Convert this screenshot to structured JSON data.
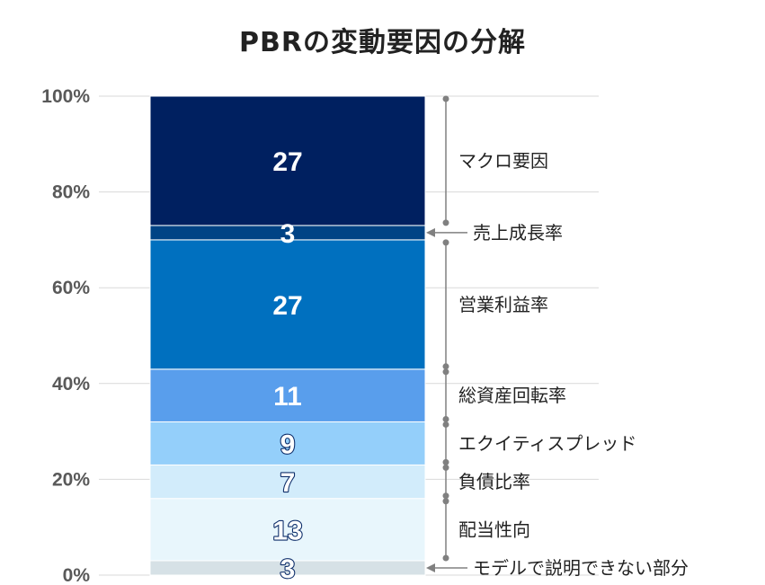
{
  "title": "PBRの変動要因の分解",
  "chart_data": {
    "type": "bar",
    "stacked": true,
    "orientation": "vertical",
    "ylim": [
      0,
      100
    ],
    "yticks": [
      "0%",
      "20%",
      "40%",
      "60%",
      "80%",
      "100%"
    ],
    "ytick_values": [
      0,
      20,
      40,
      60,
      80,
      100
    ],
    "grid": true,
    "series": [
      {
        "name": "モデルで説明できない部分",
        "value": 3,
        "label": "3",
        "color": "#d6e1e6",
        "text_color": "#ffffff",
        "text_stroke": "#0f2f6b"
      },
      {
        "name": "配当性向",
        "value": 13,
        "label": "13",
        "color": "#e8f6fc",
        "text_color": "#ffffff",
        "text_stroke": "#0f2f6b"
      },
      {
        "name": "負債比率",
        "value": 7,
        "label": "7",
        "color": "#d2ecfb",
        "text_color": "#ffffff",
        "text_stroke": "#0f2f6b"
      },
      {
        "name": "エクイティスプレッド",
        "value": 9,
        "label": "9",
        "color": "#94cffa",
        "text_color": "#ffffff",
        "text_stroke": "#0f2f6b"
      },
      {
        "name": "総資産回転率",
        "value": 11,
        "label": "11",
        "color": "#599eec",
        "text_color": "#ffffff",
        "text_stroke": ""
      },
      {
        "name": "営業利益率",
        "value": 27,
        "label": "27",
        "color": "#0070bf",
        "text_color": "#ffffff",
        "text_stroke": ""
      },
      {
        "name": "売上成長率",
        "value": 3,
        "label": "3",
        "color": "#004385",
        "text_color": "#ffffff",
        "text_stroke": ""
      },
      {
        "name": "マクロ要因",
        "value": 27,
        "label": "27",
        "color": "#002060",
        "text_color": "#ffffff",
        "text_stroke": ""
      }
    ],
    "annotation_style": {
      "bracket_color": "#808080",
      "arrow_segments": [
        "売上成長率",
        "モデルで説明できない部分"
      ]
    }
  }
}
